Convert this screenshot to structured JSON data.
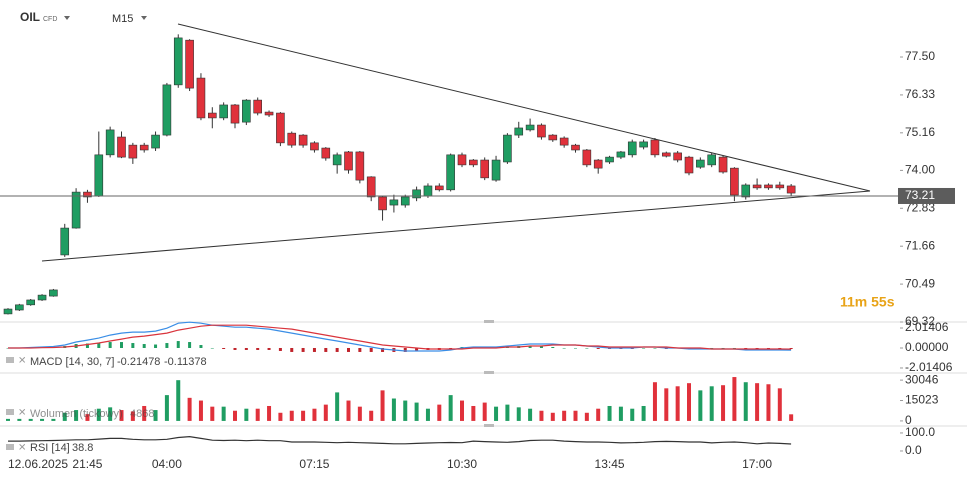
{
  "chart_data": [
    {
      "type": "candlestick",
      "title": "OIL",
      "subtitle": "CFD",
      "timeframe": "M15",
      "date_label": "12.06.2025",
      "categories": [
        null,
        null,
        null,
        null,
        null,
        null,
        null,
        "21:45",
        null,
        null,
        null,
        null,
        null,
        null,
        "04:00",
        null,
        null,
        null,
        null,
        null,
        null,
        null,
        null,
        null,
        null,
        null,
        null,
        "07:15",
        null,
        null,
        null,
        null,
        null,
        null,
        null,
        null,
        null,
        null,
        null,
        null,
        "10:30",
        null,
        null,
        null,
        null,
        null,
        null,
        null,
        null,
        null,
        null,
        null,
        null,
        "13:45",
        null,
        null,
        null,
        null,
        null,
        null,
        null,
        null,
        null,
        null,
        null,
        null,
        "17:00",
        null,
        null,
        null
      ],
      "open": [
        69.57,
        69.69,
        69.85,
        70.0,
        70.12,
        71.39,
        72.22,
        73.33,
        73.21,
        74.48,
        75.03,
        74.78,
        74.78,
        74.69,
        75.09,
        76.64,
        78.02,
        76.85,
        75.77,
        75.62,
        76.02,
        75.49,
        76.17,
        75.8,
        75.77,
        75.15,
        75.09,
        74.85,
        74.69,
        74.17,
        74.57,
        74.57,
        73.8,
        73.18,
        72.93,
        72.93,
        73.15,
        73.21,
        73.52,
        73.4,
        74.48,
        74.32,
        74.32,
        73.7,
        74.26,
        75.09,
        75.25,
        75.4,
        75.09,
        75.0,
        74.78,
        74.63,
        74.32,
        74.26,
        74.41,
        74.48,
        74.72,
        74.94,
        74.54,
        74.54,
        74.41,
        74.1,
        74.17,
        74.41,
        74.07,
        73.18,
        73.55,
        73.55,
        73.55,
        73.52
      ],
      "high": [
        69.75,
        69.88,
        70.03,
        70.18,
        70.34,
        72.35,
        73.45,
        73.4,
        75.2,
        75.35,
        75.2,
        74.85,
        74.85,
        75.2,
        76.7,
        78.2,
        78.05,
        77.0,
        75.95,
        76.1,
        76.05,
        76.2,
        76.25,
        75.85,
        75.8,
        75.2,
        75.12,
        74.9,
        74.72,
        74.55,
        74.6,
        74.6,
        73.82,
        73.2,
        73.25,
        73.25,
        73.5,
        73.6,
        73.6,
        74.52,
        74.55,
        74.35,
        74.4,
        74.45,
        75.15,
        75.5,
        75.6,
        75.45,
        75.12,
        75.05,
        74.82,
        74.66,
        74.35,
        74.45,
        74.6,
        74.95,
        74.95,
        75.0,
        74.58,
        74.6,
        74.45,
        74.4,
        74.55,
        74.45,
        74.1,
        73.6,
        73.75,
        73.6,
        73.65,
        73.58
      ],
      "low": [
        69.55,
        69.66,
        69.82,
        69.97,
        70.1,
        71.33,
        72.2,
        73.0,
        73.18,
        74.4,
        74.38,
        74.2,
        74.55,
        74.6,
        75.05,
        76.55,
        76.45,
        75.55,
        75.3,
        75.55,
        75.3,
        75.4,
        75.7,
        75.65,
        74.75,
        74.7,
        74.7,
        74.55,
        74.3,
        73.9,
        73.9,
        73.6,
        73.05,
        72.45,
        72.7,
        72.85,
        73.05,
        73.15,
        73.35,
        73.35,
        74.1,
        74.1,
        73.7,
        73.65,
        74.2,
        75.0,
        75.2,
        74.95,
        74.88,
        74.7,
        74.55,
        74.1,
        73.9,
        74.2,
        74.35,
        74.4,
        74.65,
        74.4,
        74.4,
        74.25,
        73.85,
        74.05,
        74.1,
        73.9,
        73.05,
        73.1,
        73.4,
        73.4,
        73.4,
        73.21
      ],
      "close": [
        69.72,
        69.85,
        70.0,
        70.15,
        70.31,
        72.22,
        73.33,
        73.18,
        74.48,
        75.25,
        74.41,
        74.38,
        74.63,
        75.09,
        76.64,
        78.09,
        76.54,
        75.62,
        75.62,
        76.02,
        75.46,
        76.17,
        75.77,
        75.71,
        74.85,
        74.78,
        74.78,
        74.63,
        74.38,
        74.48,
        74.01,
        73.7,
        73.18,
        72.78,
        73.09,
        73.18,
        73.4,
        73.52,
        73.4,
        74.48,
        74.17,
        74.17,
        73.77,
        74.32,
        75.09,
        75.31,
        75.4,
        75.03,
        74.94,
        74.78,
        74.63,
        74.17,
        74.07,
        74.41,
        74.57,
        74.88,
        74.88,
        74.48,
        74.44,
        74.32,
        73.92,
        74.32,
        74.48,
        73.95,
        73.24,
        73.55,
        73.46,
        73.46,
        73.46,
        73.3
      ],
      "up_color": "#1f9d62",
      "down_color": "#e0313b",
      "ylim": [
        69.32,
        79.26
      ],
      "yticks": [
        {
          "value": 77.5,
          "label": "77.50"
        },
        76.33,
        75.16,
        {
          "value": 74,
          "label": "74.00"
        },
        72.83,
        71.66,
        70.49,
        69.32
      ],
      "last_price": 73.21,
      "countdown": "11m 55s"
    },
    {
      "type": "macd",
      "legend": "MACD [14, 30, 7]",
      "series": [
        {
          "color": "#3a8ee6",
          "values": [
            0,
            0,
            0.05,
            0.1,
            0.15,
            0.3,
            0.6,
            0.8,
            1.0,
            1.3,
            1.5,
            1.6,
            1.6,
            1.7,
            2.0,
            2.5,
            2.6,
            2.5,
            2.3,
            2.2,
            2.1,
            2.1,
            2.0,
            1.9,
            1.7,
            1.5,
            1.3,
            1.1,
            0.9,
            0.7,
            0.5,
            0.3,
            0.1,
            -0.1,
            -0.2,
            -0.3,
            -0.3,
            -0.3,
            -0.3,
            -0.2,
            0.0,
            0.1,
            0.1,
            0.1,
            0.2,
            0.3,
            0.4,
            0.4,
            0.4,
            0.3,
            0.3,
            0.2,
            0.1,
            0.0,
            0.0,
            0.0,
            0.1,
            0.1,
            0.0,
            0.0,
            -0.1,
            -0.1,
            -0.1,
            -0.1,
            -0.1,
            -0.2,
            -0.2,
            -0.2,
            -0.2,
            -0.21478
          ]
        },
        {
          "color": "#d9343c",
          "values": [
            0,
            0,
            0,
            0.03,
            0.05,
            0.1,
            0.2,
            0.35,
            0.5,
            0.7,
            0.9,
            1.1,
            1.2,
            1.35,
            1.5,
            1.8,
            2.0,
            2.2,
            2.3,
            2.3,
            2.3,
            2.3,
            2.2,
            2.1,
            2.0,
            1.9,
            1.7,
            1.5,
            1.3,
            1.1,
            0.9,
            0.7,
            0.5,
            0.3,
            0.2,
            0.1,
            0.0,
            -0.1,
            -0.1,
            -0.1,
            -0.1,
            0.0,
            0.0,
            0.0,
            0.1,
            0.1,
            0.2,
            0.2,
            0.3,
            0.3,
            0.3,
            0.2,
            0.2,
            0.1,
            0.1,
            0.1,
            0.1,
            0.1,
            0.1,
            0.0,
            0.0,
            0.0,
            -0.1,
            -0.1,
            -0.1,
            -0.1,
            -0.1,
            -0.1,
            -0.1,
            -0.11378
          ]
        }
      ],
      "histogram": [
        0,
        0,
        0.05,
        0.07,
        0.1,
        0.2,
        0.4,
        0.45,
        0.5,
        0.6,
        0.6,
        0.5,
        0.4,
        0.35,
        0.5,
        0.7,
        0.6,
        0.3,
        0,
        -0.1,
        -0.2,
        -0.2,
        -0.2,
        -0.2,
        -0.3,
        -0.4,
        -0.4,
        -0.4,
        -0.4,
        -0.4,
        -0.4,
        -0.4,
        -0.4,
        -0.4,
        -0.4,
        -0.4,
        -0.3,
        -0.2,
        -0.2,
        -0.1,
        0.1,
        0.1,
        0.1,
        0.1,
        0.1,
        0.2,
        0.2,
        0.2,
        0.1,
        0,
        0,
        0,
        -0.1,
        -0.1,
        -0.1,
        -0.1,
        0,
        0,
        -0.1,
        0,
        -0.1,
        -0.1,
        0,
        0,
        0,
        -0.1,
        -0.1,
        -0.1,
        -0.1,
        -0.1
      ],
      "up_color": "#1f9d62",
      "down_color": "#c0232b",
      "ylim": [
        -2.42,
        2.62
      ],
      "yticks": [
        2.01406,
        {
          "value": 0,
          "label": "0.00000"
        },
        -2.01406
      ]
    },
    {
      "type": "bar",
      "legend": "Wolumen (tickowy)",
      "values": [
        1500,
        1500,
        1500,
        1500,
        1500,
        6000,
        8000,
        5000,
        9000,
        10000,
        8000,
        7000,
        11000,
        8000,
        19000,
        30000,
        17000,
        15000,
        10500,
        10500,
        7500,
        9000,
        9000,
        11000,
        6000,
        7500,
        7500,
        9000,
        12000,
        21000,
        15000,
        10500,
        7500,
        22500,
        16500,
        15000,
        13500,
        9000,
        12000,
        19000,
        15000,
        11000,
        13500,
        10500,
        12000,
        10000,
        9000,
        7500,
        6000,
        7500,
        7500,
        6000,
        9000,
        11000,
        10500,
        9000,
        11000,
        28500,
        24000,
        25500,
        27800,
        22500,
        25500,
        26300,
        32300,
        28500,
        27800,
        27000,
        24000,
        4868
      ],
      "ylim": [
        -3000,
        34550
      ],
      "yticks": [
        30046,
        15023,
        0
      ]
    },
    {
      "type": "line",
      "legend": "RSI [14]",
      "color": "#333333",
      "values": [
        55,
        55,
        56,
        57,
        58,
        60,
        62,
        62,
        66,
        70,
        70,
        65,
        62,
        62,
        65,
        75,
        80,
        70,
        60,
        58,
        60,
        57,
        60,
        57,
        57,
        50,
        50,
        50,
        48,
        46,
        48,
        46,
        44,
        42,
        40,
        40,
        42,
        44,
        46,
        47,
        46,
        55,
        52,
        50,
        48,
        52,
        58,
        60,
        60,
        55,
        52,
        50,
        50,
        48,
        45,
        46,
        48,
        52,
        53,
        52,
        50,
        50,
        45,
        48,
        50,
        46,
        40,
        44,
        42,
        38.8
      ],
      "ylim": [
        -50,
        133
      ],
      "yticks": [
        {
          "value": 100,
          "label": "100.0"
        },
        {
          "value": 0,
          "label": "0.0"
        }
      ]
    }
  ]
}
